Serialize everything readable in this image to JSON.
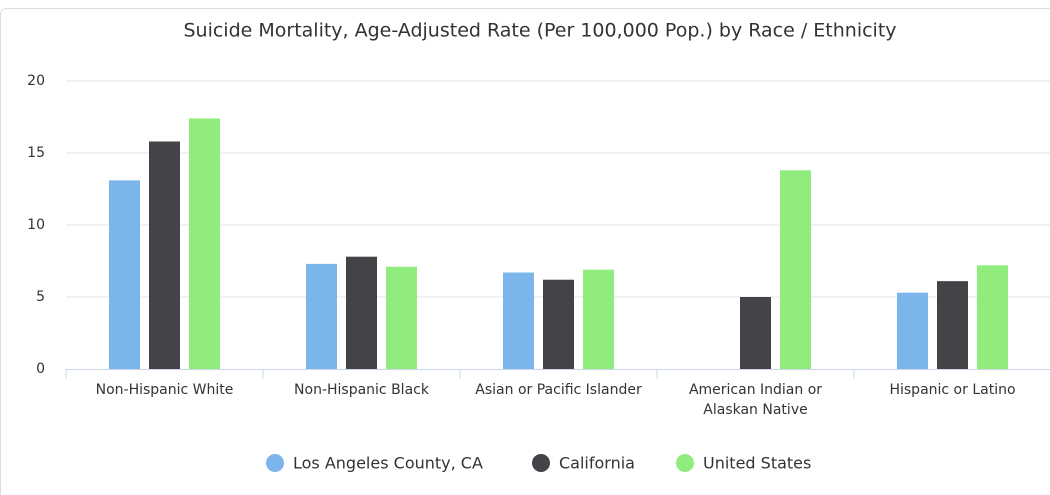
{
  "chart_data": {
    "type": "bar",
    "title": "Suicide Mortality, Age-Adjusted Rate (Per 100,000 Pop.) by Race / Ethnicity",
    "categories": [
      "Non-Hispanic White",
      "Non-Hispanic Black",
      "Asian or Pacific Islander",
      "American Indian or Alaskan Native",
      "Hispanic or Latino"
    ],
    "series": [
      {
        "name": "Los Angeles County, CA",
        "color": "#7cb5ec",
        "values": [
          13.1,
          7.3,
          6.7,
          null,
          5.3
        ]
      },
      {
        "name": "California",
        "color": "#434348",
        "values": [
          15.8,
          7.8,
          6.2,
          5.0,
          6.1
        ]
      },
      {
        "name": "United States",
        "color": "#90ed7d",
        "values": [
          17.4,
          7.1,
          6.9,
          13.8,
          7.2
        ]
      }
    ],
    "ylim": [
      0,
      20
    ],
    "yticks": [
      0,
      5,
      10,
      15,
      20
    ],
    "grid": true,
    "legend": "bottom"
  }
}
